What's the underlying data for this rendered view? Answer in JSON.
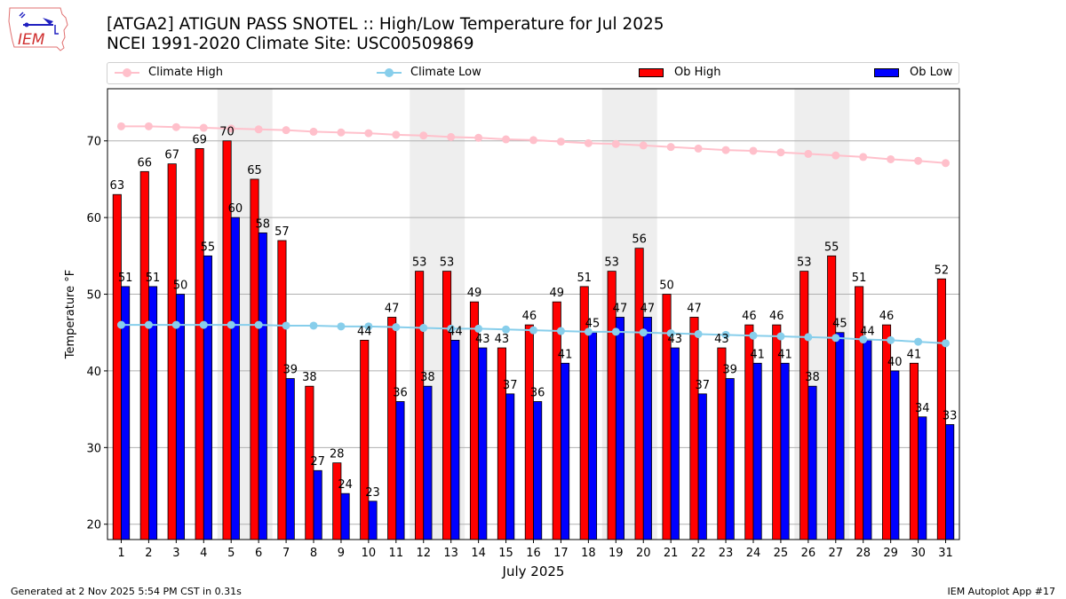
{
  "header": {
    "title_line1": "[ATGA2] ATIGUN PASS SNOTEL :: High/Low Temperature for Jul 2025",
    "title_line2": "NCEI 1991-2020 Climate Site: USC00509869",
    "logo_text": "IEM"
  },
  "footer": {
    "generated": "Generated at 2 Nov 2025 5:54 PM CST in 0.31s",
    "app": "IEM Autoplot App #17"
  },
  "colors": {
    "ob_high": "#ff0000",
    "ob_low": "#0000ff",
    "climate_high": "#ffc0cb",
    "climate_low": "#87ceeb",
    "weekend_shade": "#eeeeee",
    "grid": "#b0b0b0"
  },
  "chart_data": {
    "type": "bar",
    "title": "[ATGA2] ATIGUN PASS SNOTEL :: High/Low Temperature for Jul 2025",
    "subtitle": "NCEI 1991-2020 Climate Site: USC00509869",
    "xlabel": "July 2025",
    "ylabel": "Temperature °F",
    "ylim": [
      18,
      76.8
    ],
    "xlim": [
      0.5,
      31.5
    ],
    "yticks": [
      20,
      30,
      40,
      50,
      60,
      70
    ],
    "grid": "y",
    "legend_position": "top",
    "categories": [
      "1",
      "2",
      "3",
      "4",
      "5",
      "6",
      "7",
      "8",
      "9",
      "10",
      "11",
      "12",
      "13",
      "14",
      "15",
      "16",
      "17",
      "18",
      "19",
      "20",
      "21",
      "22",
      "23",
      "24",
      "25",
      "26",
      "27",
      "28",
      "29",
      "30",
      "31"
    ],
    "shaded_day_ranges": [
      [
        5,
        6
      ],
      [
        12,
        13
      ],
      [
        19,
        20
      ],
      [
        26,
        27
      ]
    ],
    "series": [
      {
        "name": "Ob High",
        "type": "bar",
        "values": [
          63,
          66,
          67,
          69,
          70,
          65,
          57,
          38,
          28,
          44,
          47,
          53,
          53,
          49,
          43,
          46,
          49,
          51,
          53,
          56,
          50,
          47,
          43,
          46,
          46,
          53,
          55,
          51,
          46,
          41,
          52
        ]
      },
      {
        "name": "Ob Low",
        "type": "bar",
        "values": [
          51,
          51,
          50,
          55,
          60,
          58,
          39,
          27,
          24,
          23,
          36,
          38,
          44,
          43,
          37,
          36,
          41,
          45,
          47,
          47,
          43,
          37,
          39,
          41,
          41,
          38,
          45,
          44,
          40,
          34,
          33
        ]
      },
      {
        "name": "Climate High",
        "type": "line",
        "values": [
          71.9,
          71.9,
          71.8,
          71.7,
          71.6,
          71.5,
          71.4,
          71.2,
          71.1,
          71.0,
          70.8,
          70.7,
          70.5,
          70.4,
          70.2,
          70.1,
          69.9,
          69.7,
          69.6,
          69.4,
          69.2,
          69.0,
          68.8,
          68.7,
          68.5,
          68.3,
          68.1,
          67.9,
          67.6,
          67.4,
          67.1
        ]
      },
      {
        "name": "Climate Low",
        "type": "line",
        "values": [
          46.0,
          46.0,
          46.0,
          46.0,
          46.0,
          46.0,
          45.9,
          45.9,
          45.8,
          45.8,
          45.7,
          45.6,
          45.5,
          45.5,
          45.4,
          45.3,
          45.2,
          45.1,
          45.1,
          45.0,
          44.9,
          44.8,
          44.7,
          44.6,
          44.5,
          44.4,
          44.3,
          44.1,
          44.0,
          43.8,
          43.6
        ]
      }
    ]
  }
}
